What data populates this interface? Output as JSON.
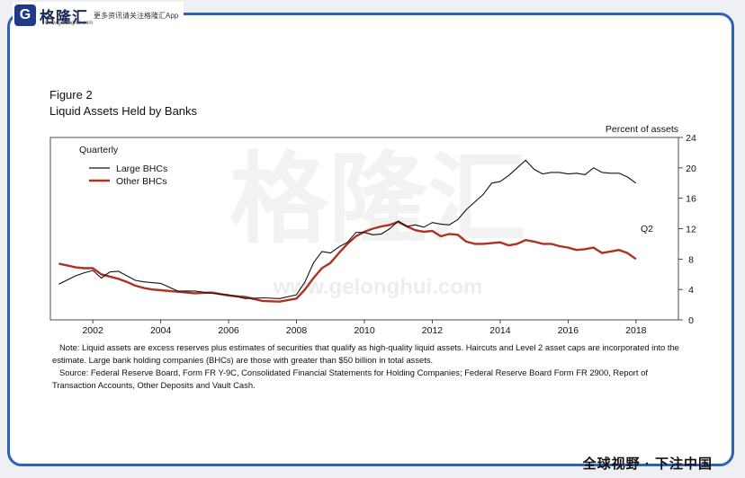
{
  "brand": {
    "logo_letter": "G",
    "name": "格隆汇",
    "url": "www.gelonghui.com",
    "tagline": "更多资讯请关注格隆汇App",
    "watermark_cn": "格隆汇",
    "watermark_url": "www.gelonghui.com"
  },
  "footer_tag": "全球视野 · 下注中国",
  "chart_data": {
    "type": "line",
    "title_line1": "Figure 2",
    "title_line2": "Liquid Assets Held by Banks",
    "frequency_label": "Quarterly",
    "ylabel": "Percent of assets",
    "ylim": [
      0,
      24
    ],
    "yticks": [
      0,
      4,
      8,
      12,
      16,
      20,
      24
    ],
    "xlim": [
      2000.75,
      2019.25
    ],
    "xticks": [
      2002,
      2004,
      2006,
      2008,
      2010,
      2012,
      2014,
      2016,
      2018
    ],
    "latest_label": "Q2",
    "legend_position": "top-left",
    "colors": {
      "large": "#111111",
      "other": "#b03024"
    },
    "series": [
      {
        "name": "Large BHCs",
        "key": "large",
        "x": [
          2001.0,
          2001.5,
          2001.75,
          2002.0,
          2002.25,
          2002.5,
          2002.75,
          2003.0,
          2003.25,
          2003.5,
          2003.75,
          2004.0,
          2004.5,
          2005.0,
          2005.5,
          2006.0,
          2006.5,
          2007.0,
          2007.5,
          2008.0,
          2008.25,
          2008.5,
          2008.75,
          2009.0,
          2009.25,
          2009.5,
          2009.75,
          2010.0,
          2010.25,
          2010.5,
          2010.75,
          2011.0,
          2011.25,
          2011.5,
          2011.75,
          2012.0,
          2012.25,
          2012.5,
          2012.75,
          2013.0,
          2013.25,
          2013.5,
          2013.75,
          2014.0,
          2014.25,
          2014.5,
          2014.75,
          2015.0,
          2015.25,
          2015.5,
          2015.75,
          2016.0,
          2016.25,
          2016.5,
          2016.75,
          2017.0,
          2017.25,
          2017.5,
          2017.75,
          2018.0
        ],
        "values": [
          4.7,
          5.8,
          6.2,
          6.5,
          5.5,
          6.3,
          6.4,
          5.8,
          5.2,
          5.0,
          4.9,
          4.8,
          3.8,
          3.8,
          3.5,
          3.3,
          2.8,
          2.9,
          2.8,
          3.3,
          5.0,
          7.5,
          9.0,
          8.8,
          9.6,
          10.2,
          11.5,
          11.5,
          11.2,
          11.3,
          12.0,
          13.0,
          12.3,
          12.5,
          12.2,
          12.8,
          12.6,
          12.5,
          13.2,
          14.5,
          15.5,
          16.5,
          18.0,
          18.2,
          19.0,
          20.0,
          21.0,
          19.8,
          19.2,
          19.4,
          19.4,
          19.2,
          19.3,
          19.1,
          20.0,
          19.4,
          19.3,
          19.3,
          18.8,
          18.0
        ]
      },
      {
        "name": "Other BHCs",
        "key": "other",
        "x": [
          2001.0,
          2001.5,
          2001.75,
          2002.0,
          2002.25,
          2002.5,
          2002.75,
          2003.0,
          2003.25,
          2003.5,
          2003.75,
          2004.0,
          2004.5,
          2005.0,
          2005.5,
          2006.0,
          2006.5,
          2007.0,
          2007.5,
          2008.0,
          2008.25,
          2008.5,
          2008.75,
          2009.0,
          2009.25,
          2009.5,
          2009.75,
          2010.0,
          2010.25,
          2010.5,
          2010.75,
          2011.0,
          2011.25,
          2011.5,
          2011.75,
          2012.0,
          2012.25,
          2012.5,
          2012.75,
          2013.0,
          2013.25,
          2013.5,
          2013.75,
          2014.0,
          2014.25,
          2014.5,
          2014.75,
          2015.0,
          2015.25,
          2015.5,
          2015.75,
          2016.0,
          2016.25,
          2016.5,
          2016.75,
          2017.0,
          2017.25,
          2017.5,
          2017.75,
          2018.0
        ],
        "values": [
          7.4,
          6.9,
          6.8,
          6.8,
          6.0,
          5.7,
          5.4,
          5.0,
          4.5,
          4.2,
          4.0,
          3.9,
          3.7,
          3.5,
          3.6,
          3.2,
          3.0,
          2.5,
          2.4,
          2.8,
          4.0,
          5.5,
          6.8,
          7.5,
          8.8,
          10.0,
          11.0,
          11.6,
          12.0,
          12.3,
          12.5,
          12.9,
          12.3,
          11.8,
          11.6,
          11.7,
          11.0,
          11.3,
          11.2,
          10.3,
          10.0,
          10.0,
          10.1,
          10.2,
          9.8,
          10.0,
          10.5,
          10.3,
          10.0,
          10.0,
          9.7,
          9.5,
          9.2,
          9.3,
          9.5,
          8.8,
          9.0,
          9.2,
          8.8,
          8.0
        ]
      }
    ]
  },
  "note": {
    "note_text": "Note: Liquid assets are excess reserves plus estimates of securities that qualify as high-quality liquid assets. Haircuts and Level 2 asset caps are incorporated into the estimate. Large bank holding companies (BHCs) are those with greater than $50 billion in total assets.",
    "source_text": "Source: Federal Reserve Board, Form FR Y-9C, Consolidated Financial Statements for Holding Companies; Federal Reserve Board Form FR 2900, Report of Transaction Accounts, Other Deposits and Vault Cash."
  }
}
